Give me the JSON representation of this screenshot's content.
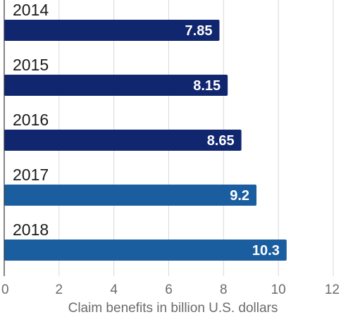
{
  "chart_data": {
    "type": "bar",
    "orientation": "horizontal",
    "categories": [
      "2014",
      "2015",
      "2016",
      "2017",
      "2018"
    ],
    "values": [
      7.85,
      8.15,
      8.65,
      9.2,
      10.3
    ],
    "value_labels": [
      "7.85",
      "8.15",
      "8.65",
      "9.2",
      "10.3"
    ],
    "bar_colors": [
      "#10266f",
      "#10266f",
      "#10266f",
      "#1a5ea0",
      "#1a5ea0"
    ],
    "title": "",
    "xlabel": "Claim benefits in billion U.S. dollars",
    "ylabel": "",
    "xlim": [
      0,
      12
    ],
    "x_ticks": [
      0,
      2,
      4,
      6,
      8,
      10,
      12
    ],
    "grid": "vertical",
    "legend": "none"
  }
}
